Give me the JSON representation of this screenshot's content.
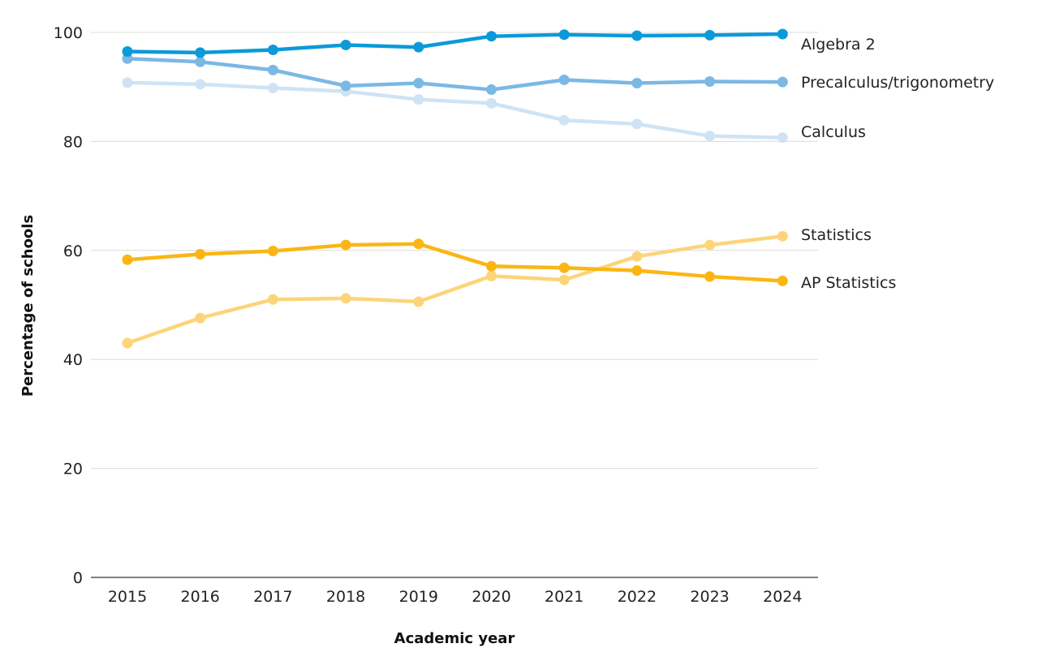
{
  "chart_data": {
    "type": "line",
    "title": "",
    "xlabel": "Academic year",
    "ylabel": "Percentage of schools",
    "ylim": [
      0,
      100
    ],
    "yticks": [
      0,
      20,
      40,
      60,
      80,
      100
    ],
    "grid": true,
    "legend": "inline labels at right end of lines",
    "x": [
      "2015",
      "2016",
      "2017",
      "2018",
      "2019",
      "2020",
      "2021",
      "2022",
      "2023",
      "2024"
    ],
    "series": [
      {
        "name": "Algebra 2",
        "color": "#0a9ad9",
        "values": [
          96.5,
          96.3,
          96.8,
          97.7,
          97.3,
          99.3,
          99.6,
          99.4,
          99.5,
          99.7
        ]
      },
      {
        "name": "Precalculus/trigonometry",
        "color": "#7bb8e4",
        "values": [
          95.2,
          94.6,
          93.1,
          90.2,
          90.7,
          89.5,
          91.3,
          90.7,
          91.0,
          90.9
        ]
      },
      {
        "name": "Calculus",
        "color": "#cfe3f4",
        "values": [
          90.8,
          90.5,
          89.8,
          89.2,
          87.7,
          87.0,
          83.9,
          83.2,
          81.0,
          80.7
        ]
      },
      {
        "name": "Statistics",
        "color": "#fdd47a",
        "values": [
          43.0,
          47.6,
          51.0,
          51.2,
          50.6,
          55.3,
          54.6,
          58.9,
          61.0,
          62.6
        ]
      },
      {
        "name": "AP Statistics",
        "color": "#fbb614",
        "values": [
          58.3,
          59.3,
          59.9,
          61.0,
          61.2,
          57.1,
          56.8,
          56.3,
          55.2,
          54.4
        ]
      }
    ]
  }
}
